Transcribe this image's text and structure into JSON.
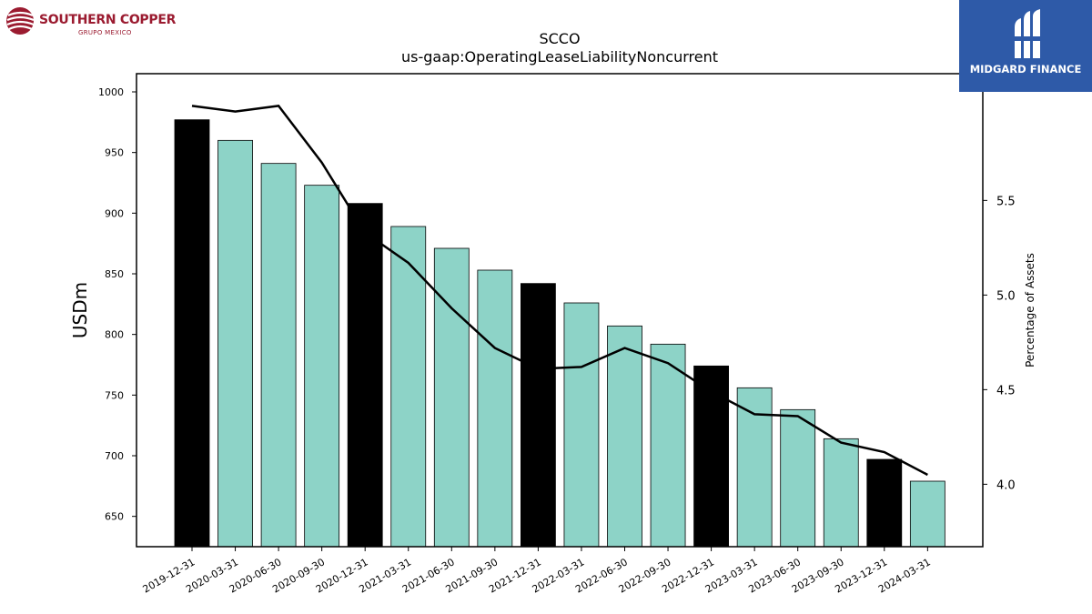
{
  "branding": {
    "left_logo_text": "SOUTHERN COPPER",
    "left_logo_sub": "GRUPO MEXICO",
    "right_logo_text": "MIDGARD FINANCE"
  },
  "chart_data": {
    "type": "bar",
    "title": "SCCO",
    "subtitle": "us-gaap:OperatingLeaseLiabilityNoncurrent",
    "ylabel": "USDm",
    "y2label": "Percentage of Assets",
    "ylim": [
      625,
      1015
    ],
    "y2lim": [
      3.67,
      6.17
    ],
    "yticks": [
      650,
      700,
      750,
      800,
      850,
      900,
      950,
      1000
    ],
    "y2ticks": [
      "4.0",
      "4.5",
      "5.0",
      "5.5"
    ],
    "categories": [
      "2019-12-31",
      "2020-03-31",
      "2020-06-30",
      "2020-09-30",
      "2020-12-31",
      "2021-03-31",
      "2021-06-30",
      "2021-09-30",
      "2021-12-31",
      "2022-03-31",
      "2022-06-30",
      "2022-09-30",
      "2022-12-31",
      "2023-03-31",
      "2023-06-30",
      "2023-09-30",
      "2023-12-31",
      "2024-03-31"
    ],
    "series": [
      {
        "values": [
          977,
          960,
          941,
          923,
          908,
          889,
          871,
          853,
          842,
          826,
          807,
          792,
          774,
          756,
          738,
          714,
          697,
          679
        ],
        "colors": [
          "#000000",
          "#8dd3c7",
          "#8dd3c7",
          "#8dd3c7",
          "#000000",
          "#8dd3c7",
          "#8dd3c7",
          "#8dd3c7",
          "#000000",
          "#8dd3c7",
          "#8dd3c7",
          "#8dd3c7",
          "#000000",
          "#8dd3c7",
          "#8dd3c7",
          "#8dd3c7",
          "#000000",
          "#8dd3c7"
        ]
      },
      {
        "type": "line",
        "axis": "right",
        "color": "#000000",
        "values": [
          6.0,
          5.97,
          6.0,
          5.7,
          5.33,
          5.17,
          4.93,
          4.72,
          4.61,
          4.62,
          4.72,
          4.64,
          4.49,
          4.37,
          4.36,
          4.22,
          4.17,
          4.05
        ]
      }
    ]
  }
}
